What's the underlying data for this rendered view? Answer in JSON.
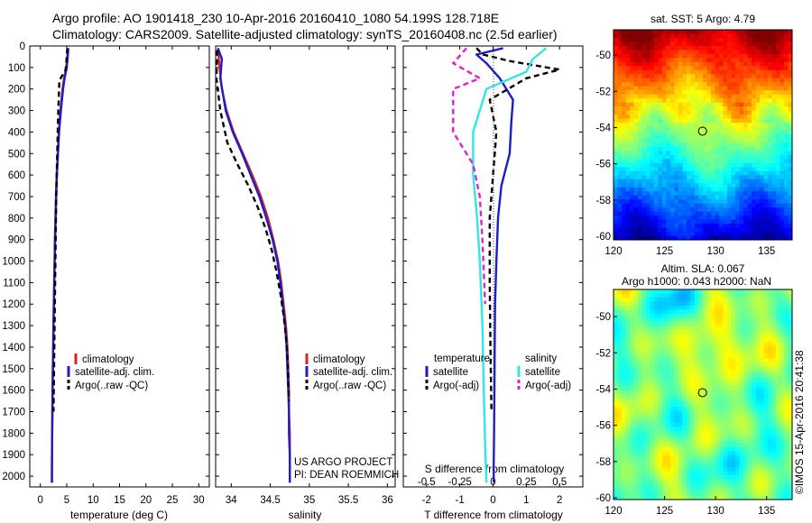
{
  "header": {
    "line1": "Argo profile: AO 1901418_230 10-Apr-2016 20160410_1080 54.199S 128.718E",
    "line2": "Climatology: CARS2009. Satellite-adjusted climatology: synTS_20160408.nc (2.5d earlier)"
  },
  "colors": {
    "climatology": "#e0201b",
    "satellite": "#1c1ccc",
    "argo": "#000000",
    "salinity_satellite": "#33e6e6",
    "salinity_argo": "#e020d0"
  },
  "chart_data": [
    {
      "type": "line",
      "id": "temperature",
      "xlabel": "temperature (deg C)",
      "ylabel": "",
      "xlim": [
        -2,
        32
      ],
      "ylim": [
        2050,
        0
      ],
      "y_inverted": true,
      "xticks": [
        0,
        5,
        10,
        15,
        20,
        25,
        30
      ],
      "yticks": [
        0,
        100,
        200,
        300,
        400,
        500,
        600,
        700,
        800,
        900,
        1000,
        1100,
        1200,
        1300,
        1400,
        1500,
        1600,
        1700,
        1800,
        1900,
        2000
      ],
      "legend": [
        "climatology",
        "satellite-adj. clim.",
        "Argo(..raw -QC)"
      ],
      "series": [
        {
          "name": "climatology",
          "style": "solid",
          "x": [
            5.2,
            5.1,
            4.9,
            4.5,
            4.2,
            3.8,
            3.5,
            3.3,
            3.1,
            2.95,
            2.85,
            2.75,
            2.7,
            2.62,
            2.55,
            2.48,
            2.42,
            2.37,
            2.32,
            2.27,
            2.22,
            2.18
          ],
          "y": [
            10,
            50,
            100,
            150,
            200,
            300,
            400,
            500,
            600,
            700,
            800,
            900,
            1000,
            1100,
            1200,
            1300,
            1400,
            1500,
            1600,
            1700,
            1850,
            2030
          ]
        },
        {
          "name": "satellite-adj. clim.",
          "style": "solid",
          "x": [
            5.3,
            5.2,
            5.0,
            4.6,
            4.3,
            3.9,
            3.55,
            3.35,
            3.15,
            3.0,
            2.9,
            2.8,
            2.72,
            2.65,
            2.58,
            2.5,
            2.44,
            2.38,
            2.33,
            2.28,
            2.22,
            2.18
          ],
          "y": [
            10,
            50,
            100,
            150,
            200,
            300,
            400,
            500,
            600,
            700,
            800,
            900,
            1000,
            1100,
            1200,
            1300,
            1400,
            1500,
            1600,
            1700,
            1850,
            2030
          ]
        },
        {
          "name": "Argo(..raw -QC)",
          "style": "dashed",
          "x": [
            5.1,
            5.0,
            4.8,
            3.6,
            3.4,
            3.2,
            3.0,
            2.9,
            2.8,
            2.7,
            2.6,
            2.5
          ],
          "y": [
            10,
            50,
            110,
            160,
            300,
            500,
            700,
            900,
            1100,
            1300,
            1500,
            1700
          ]
        }
      ]
    },
    {
      "type": "line",
      "id": "salinity",
      "xlabel": "salinity",
      "ylabel": "",
      "xlim": [
        33.8,
        36.1
      ],
      "ylim": [
        2050,
        0
      ],
      "y_inverted": true,
      "xticks": [
        34,
        34.5,
        35,
        35.5,
        36
      ],
      "legend": [
        "climatology",
        "satellite-adj. clim.",
        "Argo(..raw -QC)"
      ],
      "annotations": [
        "US ARGO PROJECT",
        "PI: DEAN ROEMMICH"
      ],
      "series": [
        {
          "name": "climatology",
          "style": "solid",
          "x": [
            33.83,
            33.85,
            33.88,
            33.94,
            34.03,
            34.15,
            34.27,
            34.38,
            34.47,
            34.54,
            34.6,
            34.64,
            34.67,
            34.7,
            34.72,
            34.73,
            34.74,
            34.74,
            34.75,
            34.75,
            34.75
          ],
          "y": [
            10,
            100,
            200,
            300,
            400,
            500,
            600,
            700,
            800,
            900,
            1000,
            1100,
            1200,
            1300,
            1400,
            1500,
            1600,
            1700,
            1800,
            1900,
            2030
          ]
        },
        {
          "name": "satellite-adj. clim.",
          "style": "solid",
          "x": [
            33.83,
            33.88,
            33.86,
            33.93,
            34.02,
            34.14,
            34.25,
            34.36,
            34.45,
            34.53,
            34.59,
            34.63,
            34.66,
            34.69,
            34.71,
            34.72,
            34.73,
            34.74,
            34.74,
            34.75,
            34.75
          ],
          "y": [
            10,
            60,
            150,
            300,
            400,
            500,
            600,
            700,
            800,
            900,
            1000,
            1100,
            1200,
            1300,
            1400,
            1500,
            1600,
            1700,
            1800,
            1900,
            2030
          ]
        },
        {
          "name": "Argo(..raw -QC)",
          "style": "dashed",
          "x": [
            33.82,
            33.81,
            33.86,
            33.95,
            34.08,
            34.22,
            34.34,
            34.44,
            34.52,
            34.58,
            34.63,
            34.67,
            34.7,
            34.72,
            34.73,
            34.74
          ],
          "y": [
            20,
            150,
            300,
            450,
            550,
            650,
            750,
            850,
            950,
            1050,
            1150,
            1250,
            1350,
            1450,
            1550,
            1650
          ]
        }
      ]
    },
    {
      "type": "line",
      "id": "difference",
      "xlabel": "T difference from climatology",
      "xlabel_top": "S difference from climatology",
      "xlim": [
        -2.7,
        2.7
      ],
      "xticks": [
        -2,
        -1,
        0,
        1,
        2
      ],
      "xticks_s": [
        -0.5,
        -0.25,
        0,
        0.25,
        0.5
      ],
      "ylim": [
        2050,
        0
      ],
      "y_inverted": true,
      "legend_temperature_title": "temperature",
      "legend_salinity_title": "salinity",
      "legend": [
        "satellite",
        "Argo(-adj)",
        "satellite",
        "Argo(-adj)"
      ],
      "series": [
        {
          "name": "temperature satellite",
          "style": "solid",
          "x": [
            0.3,
            -0.5,
            -0.2,
            0.2,
            0.6,
            0.55,
            0.5,
            0.25,
            0.15,
            0.1,
            0.06,
            0.05,
            0.04,
            0.03,
            0.02,
            0.02
          ],
          "y": [
            10,
            40,
            80,
            150,
            250,
            350,
            500,
            650,
            800,
            1000,
            1200,
            1400,
            1600,
            1800,
            1950,
            2030
          ]
        },
        {
          "name": "temperature Argo(-adj)",
          "style": "dashed",
          "x": [
            -0.5,
            -0.3,
            0.5,
            2.0,
            1.0,
            -0.1,
            0.1,
            0.0,
            -0.1,
            -0.1,
            -0.08,
            -0.05
          ],
          "y": [
            10,
            40,
            70,
            110,
            150,
            250,
            400,
            600,
            800,
            1100,
            1400,
            1700
          ]
        },
        {
          "name": "salinity satellite",
          "style": "solid",
          "x": [
            0.4,
            0.3,
            0.25,
            -0.05,
            -0.15,
            -0.15,
            -0.12,
            -0.1,
            -0.08,
            -0.07,
            -0.06,
            -0.05
          ],
          "y": [
            10,
            60,
            120,
            200,
            400,
            600,
            800,
            1000,
            1300,
            1600,
            1850,
            2030
          ]
        },
        {
          "name": "salinity Argo(-adj)",
          "style": "dashed",
          "x": [
            -0.2,
            -0.3,
            -0.1,
            -0.3,
            -0.3,
            -0.15,
            -0.1,
            -0.08,
            -0.06
          ],
          "y": [
            10,
            80,
            150,
            200,
            400,
            550,
            700,
            900,
            1200
          ]
        }
      ]
    },
    {
      "type": "heatmap",
      "id": "sst-map",
      "title": "sat. SST: 5 Argo: 4.79",
      "xlim": [
        120,
        137.5
      ],
      "ylim": [
        -60.2,
        -48.6
      ],
      "xticks": [
        120,
        125,
        130,
        135
      ],
      "yticks": [
        -50,
        -52,
        -54,
        -56,
        -58,
        -60
      ],
      "marker": {
        "lon": 128.718,
        "lat": -54.199
      }
    },
    {
      "type": "heatmap",
      "id": "sla-map",
      "title": "Altim. SLA: 0.067",
      "subtitle": "Argo h1000: 0.043 h2000: NaN",
      "xlim": [
        120,
        137.5
      ],
      "ylim": [
        -60.1,
        -48.5
      ],
      "xticks": [
        120,
        125,
        130,
        135
      ],
      "yticks": [
        -50,
        -52,
        -54,
        -56,
        -58,
        -60
      ],
      "marker": {
        "lon": 128.718,
        "lat": -54.199
      }
    }
  ],
  "side_label": "©IMOS 15-Apr-2016 20:41:38"
}
